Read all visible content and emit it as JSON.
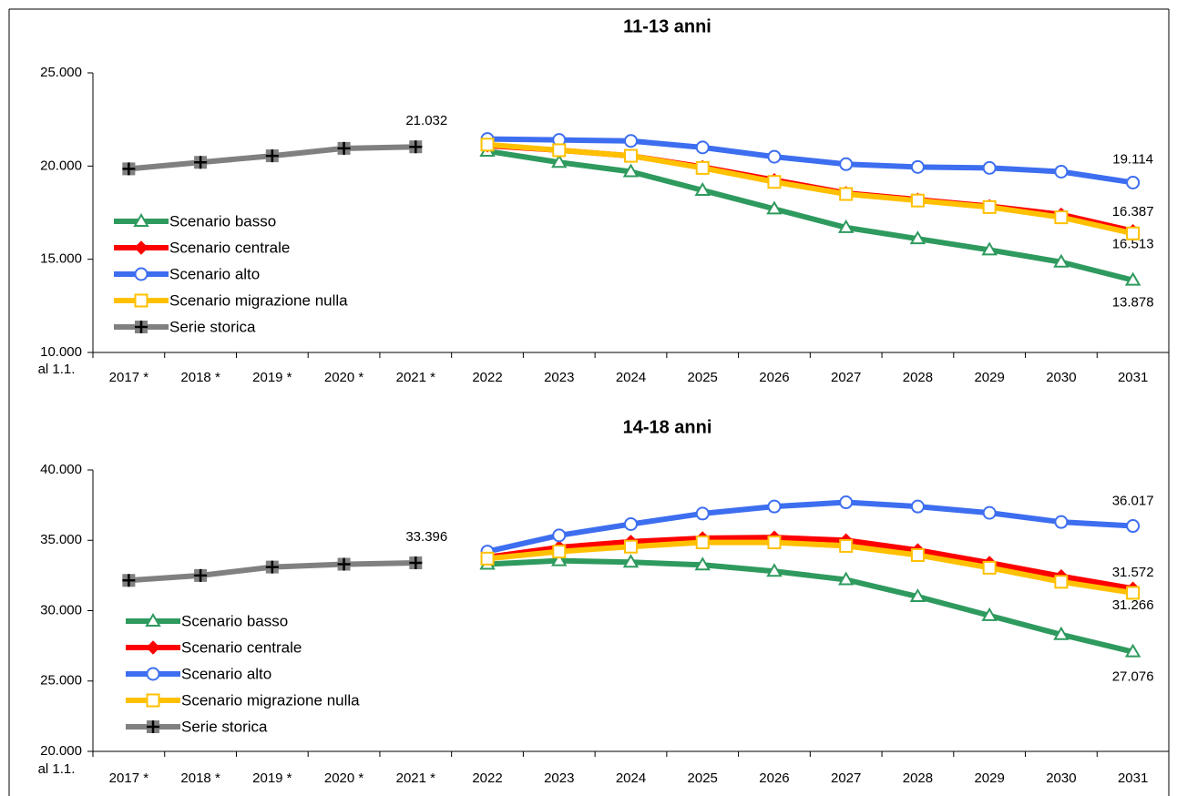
{
  "chart_data": [
    {
      "type": "line",
      "title": "11-13 anni",
      "xlabel": "al 1.1.",
      "categories": [
        "2017 *",
        "2018 *",
        "2019 *",
        "2020 *",
        "2021 *",
        "2022",
        "2023",
        "2024",
        "2025",
        "2026",
        "2027",
        "2028",
        "2029",
        "2030",
        "2031"
      ],
      "ylim": [
        10000,
        25000
      ],
      "yticks": [
        {
          "value": 10000,
          "label": "10.000"
        },
        {
          "value": 15000,
          "label": "15.000"
        },
        {
          "value": 20000,
          "label": "20.000"
        },
        {
          "value": 25000,
          "label": "25.000"
        }
      ],
      "series": [
        {
          "name": "Scenario basso",
          "color": "#2e9a5e",
          "marker": "triangle",
          "values": [
            null,
            null,
            null,
            null,
            null,
            20800,
            20200,
            19700,
            18700,
            17700,
            16700,
            16100,
            15500,
            14850,
            13878
          ],
          "value_labels": [
            null,
            null,
            null,
            null,
            null,
            null,
            null,
            null,
            null,
            null,
            null,
            null,
            null,
            null,
            "13.878"
          ]
        },
        {
          "name": "Scenario centrale",
          "color": "#ff0000",
          "marker": "diamond",
          "values": [
            null,
            null,
            null,
            null,
            null,
            21100,
            20850,
            20550,
            19950,
            19250,
            18550,
            18200,
            17850,
            17400,
            16513
          ],
          "value_labels": [
            null,
            null,
            null,
            null,
            null,
            null,
            null,
            null,
            null,
            null,
            null,
            null,
            null,
            null,
            "16.513"
          ]
        },
        {
          "name": "Scenario alto",
          "color": "#3d6ef0",
          "marker": "circle",
          "values": [
            null,
            null,
            null,
            null,
            null,
            21450,
            21400,
            21350,
            21000,
            20500,
            20100,
            19950,
            19900,
            19700,
            19114
          ],
          "value_labels": [
            null,
            null,
            null,
            null,
            null,
            null,
            null,
            null,
            null,
            null,
            null,
            null,
            null,
            null,
            "19.114"
          ]
        },
        {
          "name": "Scenario migrazione nulla",
          "color": "#ffc000",
          "marker": "square",
          "values": [
            null,
            null,
            null,
            null,
            null,
            21150,
            20850,
            20550,
            19900,
            19150,
            18500,
            18150,
            17800,
            17250,
            16387
          ],
          "value_labels": [
            null,
            null,
            null,
            null,
            null,
            null,
            null,
            null,
            null,
            null,
            null,
            null,
            null,
            null,
            "16.387"
          ]
        },
        {
          "name": "Serie storica",
          "color": "#808080",
          "marker": "plus",
          "values": [
            19850,
            20200,
            20550,
            20950,
            21032,
            null,
            null,
            null,
            null,
            null,
            null,
            null,
            null,
            null,
            null
          ],
          "value_labels": [
            null,
            null,
            null,
            null,
            "21.032",
            null,
            null,
            null,
            null,
            null,
            null,
            null,
            null,
            null,
            null
          ]
        }
      ]
    },
    {
      "type": "line",
      "title": "14-18 anni",
      "xlabel": "al 1.1.",
      "categories": [
        "2017 *",
        "2018 *",
        "2019 *",
        "2020 *",
        "2021 *",
        "2022",
        "2023",
        "2024",
        "2025",
        "2026",
        "2027",
        "2028",
        "2029",
        "2030",
        "2031"
      ],
      "ylim": [
        20000,
        40000
      ],
      "yticks": [
        {
          "value": 20000,
          "label": "20.000"
        },
        {
          "value": 25000,
          "label": "25.000"
        },
        {
          "value": 30000,
          "label": "30.000"
        },
        {
          "value": 35000,
          "label": "35.000"
        },
        {
          "value": 40000,
          "label": "40.000"
        }
      ],
      "series": [
        {
          "name": "Scenario basso",
          "color": "#2e9a5e",
          "marker": "triangle",
          "values": [
            null,
            null,
            null,
            null,
            null,
            33300,
            33550,
            33450,
            33250,
            32800,
            32200,
            31000,
            29650,
            28300,
            27076
          ],
          "value_labels": [
            null,
            null,
            null,
            null,
            null,
            null,
            null,
            null,
            null,
            null,
            null,
            null,
            null,
            null,
            "27.076"
          ]
        },
        {
          "name": "Scenario centrale",
          "color": "#ff0000",
          "marker": "diamond",
          "values": [
            null,
            null,
            null,
            null,
            null,
            33800,
            34500,
            34900,
            35150,
            35200,
            35000,
            34300,
            33400,
            32450,
            31572
          ],
          "value_labels": [
            null,
            null,
            null,
            null,
            null,
            null,
            null,
            null,
            null,
            null,
            null,
            null,
            null,
            null,
            "31.572"
          ]
        },
        {
          "name": "Scenario alto",
          "color": "#3d6ef0",
          "marker": "circle",
          "values": [
            null,
            null,
            null,
            null,
            null,
            34200,
            35350,
            36150,
            36900,
            37400,
            37700,
            37400,
            36950,
            36300,
            36017
          ],
          "value_labels": [
            null,
            null,
            null,
            null,
            null,
            null,
            null,
            null,
            null,
            null,
            null,
            null,
            null,
            null,
            "36.017"
          ]
        },
        {
          "name": "Scenario migrazione nulla",
          "color": "#ffc000",
          "marker": "square",
          "values": [
            null,
            null,
            null,
            null,
            null,
            33700,
            34200,
            34550,
            34850,
            34850,
            34600,
            33950,
            33050,
            32050,
            31266
          ],
          "value_labels": [
            null,
            null,
            null,
            null,
            null,
            null,
            null,
            null,
            null,
            null,
            null,
            null,
            null,
            null,
            "31.266"
          ]
        },
        {
          "name": "Serie storica",
          "color": "#808080",
          "marker": "plus",
          "values": [
            32150,
            32500,
            33100,
            33300,
            33396,
            null,
            null,
            null,
            null,
            null,
            null,
            null,
            null,
            null,
            null
          ],
          "value_labels": [
            null,
            null,
            null,
            null,
            "33.396",
            null,
            null,
            null,
            null,
            null,
            null,
            null,
            null,
            null,
            null
          ]
        }
      ]
    }
  ]
}
